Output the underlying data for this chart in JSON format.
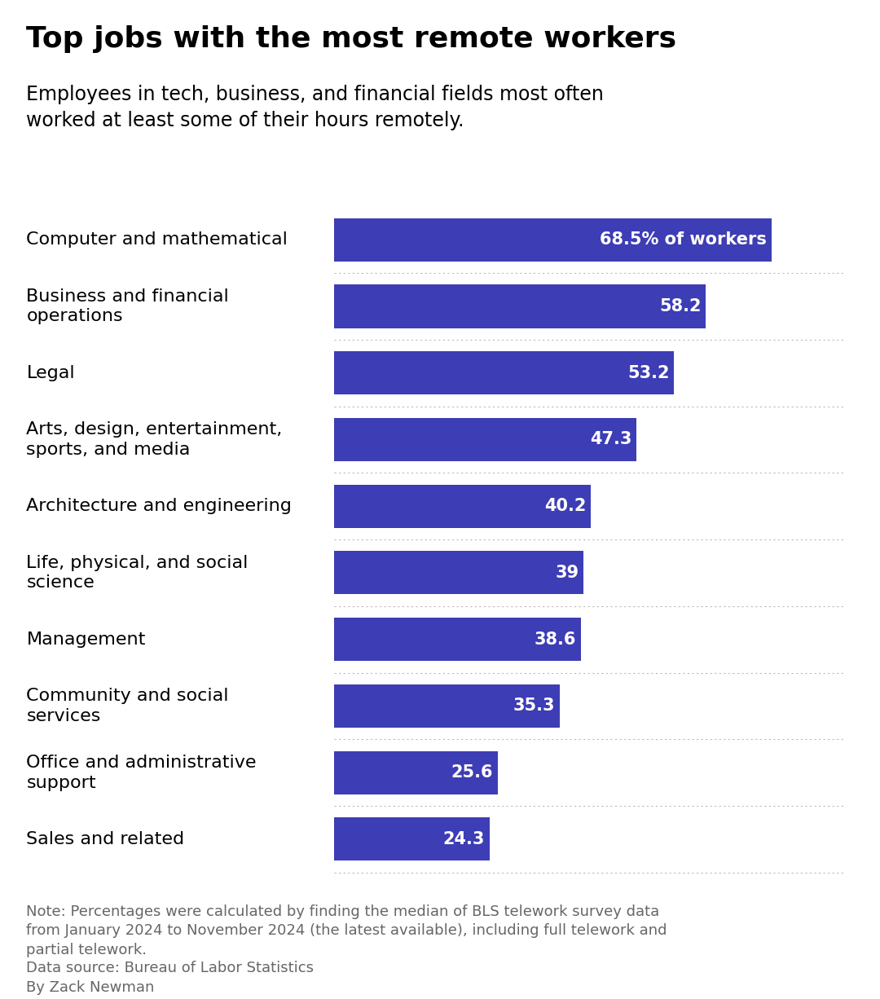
{
  "title": "Top jobs with the most remote workers",
  "subtitle": "Employees in tech, business, and financial fields most often\nworked at least some of their hours remotely.",
  "categories": [
    "Computer and mathematical",
    "Business and financial\noperations",
    "Legal",
    "Arts, design, entertainment,\nsports, and media",
    "Architecture and engineering",
    "Life, physical, and social\nscience",
    "Management",
    "Community and social\nservices",
    "Office and administrative\nsupport",
    "Sales and related"
  ],
  "values": [
    68.5,
    58.2,
    53.2,
    47.3,
    40.2,
    39.0,
    38.6,
    35.3,
    25.6,
    24.3
  ],
  "bar_labels": [
    "68.5% of workers",
    "58.2",
    "53.2",
    "47.3",
    "40.2",
    "39",
    "38.6",
    "35.3",
    "25.6",
    "24.3"
  ],
  "bar_color": "#3d3db5",
  "title_fontsize": 26,
  "subtitle_fontsize": 17,
  "label_fontsize": 16,
  "value_fontsize": 15,
  "note_text": "Note: Percentages were calculated by finding the median of BLS telework survey data\nfrom January 2024 to November 2024 (the latest available), including full telework and\npartial telework.",
  "source_text": "Data source: Bureau of Labor Statistics\nBy Zack Newman",
  "note_fontsize": 13,
  "background_color": "#ffffff",
  "xlim": [
    0,
    80
  ]
}
